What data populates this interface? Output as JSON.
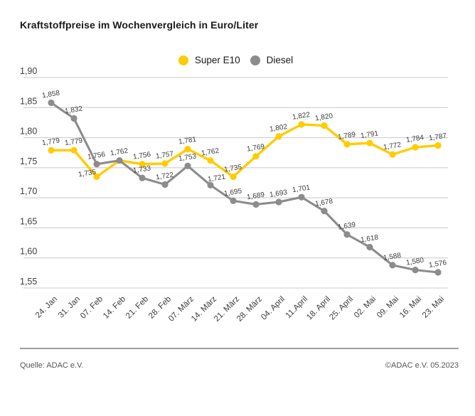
{
  "title": "Kraftstoffpreise im Wochenvergleich in Euro/Liter",
  "legend": [
    {
      "label": "Super E10"
    },
    {
      "label": "Diesel"
    }
  ],
  "footer": {
    "source": "Quelle: ADAC e.V.",
    "copyright": "©ADAC e.V. 05.2023"
  },
  "colors": {
    "super_e10": "#FFCC00",
    "diesel": "#8C8C8C",
    "grid": "#C8C8C8",
    "axis_text": "#3C3C3C",
    "data_label": "#3C3C3C"
  },
  "chart_data": {
    "type": "line",
    "title": "Kraftstoffpreise im Wochenvergleich in Euro/Liter",
    "unit": "Euro/Liter",
    "grid": true,
    "legend_position": "top-center",
    "categories": [
      "24. Jan",
      "31. Jan",
      "07. Feb",
      "14. Feb",
      "21. Feb",
      "28. Feb",
      "07. März",
      "14. März",
      "21. März",
      "28. März",
      "04. April",
      "11.April",
      "18. April",
      "25. April",
      "02. Mai",
      "09. Mai",
      "16. Mai",
      "23. Mai"
    ],
    "series": [
      {
        "name": "Super E10",
        "color": "#FFCC00",
        "values": [
          1.779,
          1.779,
          1.735,
          1.762,
          1.756,
          1.757,
          1.781,
          1.762,
          1.735,
          1.769,
          1.802,
          1.822,
          1.82,
          1.789,
          1.791,
          1.772,
          1.784,
          1.787
        ],
        "labels": [
          "1,779",
          "1,779",
          "1,735",
          "",
          "1,756",
          "1,757",
          "1,781",
          "1,762",
          "1,735",
          "1,769",
          "1,802",
          "1,822",
          "1,820",
          "1,789",
          "1,791",
          "1,772",
          "1,784",
          "1,787"
        ]
      },
      {
        "name": "Diesel",
        "color": "#8C8C8C",
        "values": [
          1.858,
          1.832,
          1.756,
          1.762,
          1.733,
          1.722,
          1.753,
          1.721,
          1.695,
          1.689,
          1.693,
          1.701,
          1.678,
          1.639,
          1.618,
          1.588,
          1.58,
          1.576
        ],
        "labels": [
          "1,858",
          "1,832",
          "1,756",
          "1,762",
          "1,733",
          "1,722",
          "1,753",
          "1,721",
          "1,695",
          "1,689",
          "1,693",
          "1,701",
          "1,678",
          "1,639",
          "1,618",
          "1,588",
          "1,580",
          "1,576"
        ]
      }
    ],
    "y_axis": {
      "min": 1.55,
      "max": 1.9,
      "ticks": [
        "1,90",
        "1,85",
        "1,80",
        "1,75",
        "1,70",
        "1,65",
        "1,60",
        "1,55"
      ],
      "tick_values": [
        1.9,
        1.85,
        1.8,
        1.75,
        1.7,
        1.65,
        1.6,
        1.55
      ]
    },
    "label_offsets": {
      "Super E10": {
        "2": [
          -13,
          7
        ]
      },
      "Diesel": {
        "7": [
          9,
          2
        ]
      }
    }
  }
}
